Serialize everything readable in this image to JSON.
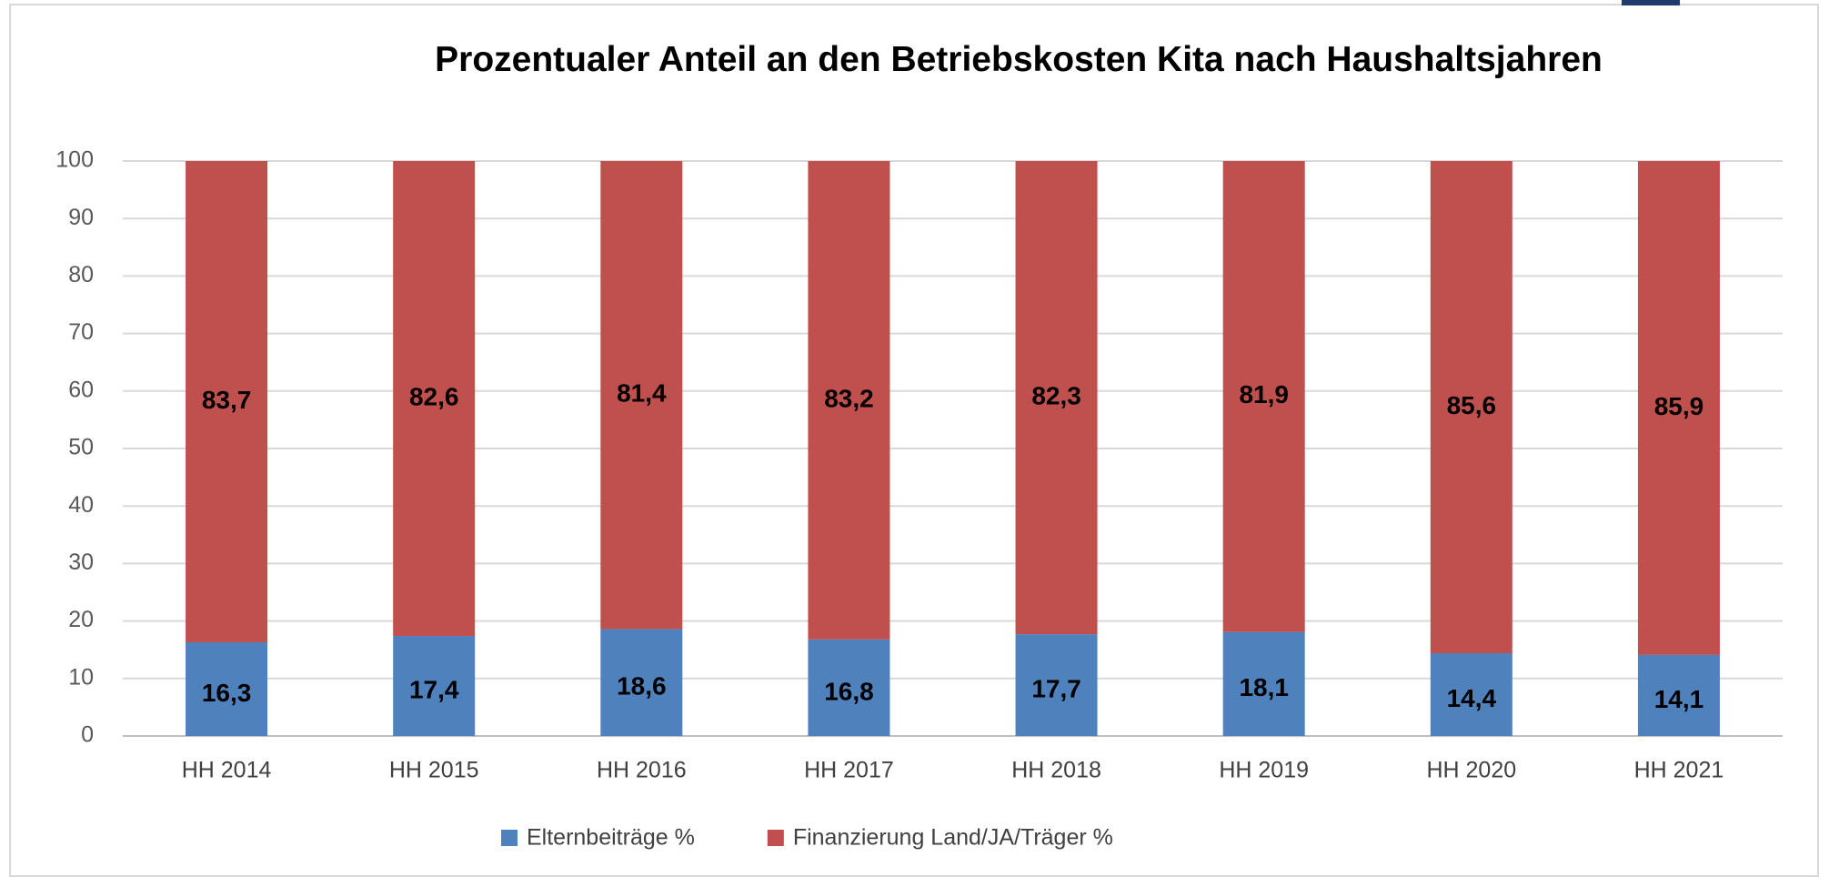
{
  "chart_data": {
    "type": "stacked_bar",
    "title": "Prozentualer Anteil an den Betriebskosten Kita nach Haushaltsjahren",
    "categories": [
      "HH 2014",
      "HH 2015",
      "HH 2016",
      "HH 2017",
      "HH 2018",
      "HH 2019",
      "HH 2020",
      "HH 2021"
    ],
    "series": [
      {
        "name": "Elternbeiträge %",
        "color": "#4f81bd",
        "values": [
          16.3,
          17.4,
          18.6,
          16.8,
          17.7,
          18.1,
          14.4,
          14.1
        ],
        "value_labels": [
          "16,3",
          "17,4",
          "18,6",
          "16,8",
          "17,7",
          "18,1",
          "14,4",
          "14,1"
        ]
      },
      {
        "name": "Finanzierung Land/JA/Träger %",
        "color": "#c0504d",
        "values": [
          83.7,
          82.6,
          81.4,
          83.2,
          82.3,
          81.9,
          85.6,
          85.9
        ],
        "value_labels": [
          "83,7",
          "82,6",
          "81,4",
          "83,2",
          "82,3",
          "81,9",
          "85,6",
          "85,9"
        ]
      }
    ],
    "ylim": [
      0,
      100
    ],
    "yticks": [
      0,
      10,
      20,
      30,
      40,
      50,
      60,
      70,
      80,
      90,
      100
    ],
    "grid": true,
    "legend": "bottom"
  }
}
